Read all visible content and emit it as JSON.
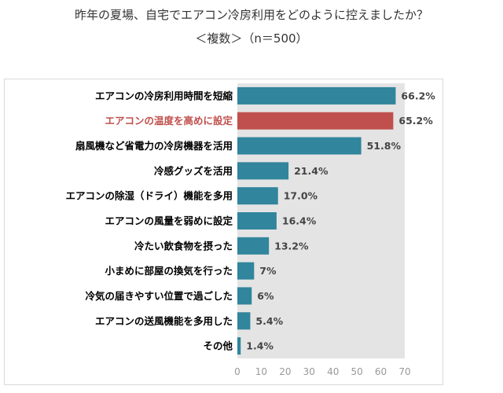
{
  "chart_data": {
    "type": "bar",
    "orientation": "horizontal",
    "title": "昨年の夏場、自宅でエアコン冷房利用をどのように控えましたか？",
    "subtitle": "＜複数＞（n＝500）",
    "categories": [
      "エアコンの冷房利用時間を短縮",
      "エアコンの温度を高めに設定",
      "扇風機など省電力の冷房機器を活用",
      "冷感グッズを活用",
      "エアコンの除湿（ドライ）機能を多用",
      "エアコンの風量を弱めに設定",
      "冷たい飲食物を摂った",
      "小まめに部屋の換気を行った",
      "冷気の届きやすい位置で過ごした",
      "エアコンの送風機能を多用した",
      "その他"
    ],
    "values": [
      66.2,
      65.2,
      51.8,
      21.4,
      17.0,
      16.4,
      13.2,
      7,
      6,
      5.4,
      1.4
    ],
    "value_labels": [
      "66.2%",
      "65.2%",
      "51.8%",
      "21.4%",
      "17.0%",
      "16.4%",
      "13.2%",
      "7%",
      "6%",
      "5.4%",
      "1.4%"
    ],
    "highlight_index": 1,
    "xlim": [
      0,
      70
    ],
    "xticks": [
      0,
      10,
      20,
      30,
      40,
      50,
      60,
      70
    ],
    "grid": false,
    "colors": {
      "bar": "#31859c",
      "highlight_bar": "#c0504d",
      "highlight_text": "#c0504d",
      "plot_background": "#e4e4e4",
      "text": "#000000",
      "value_label": "#444444",
      "tick_label": "#999999"
    }
  }
}
